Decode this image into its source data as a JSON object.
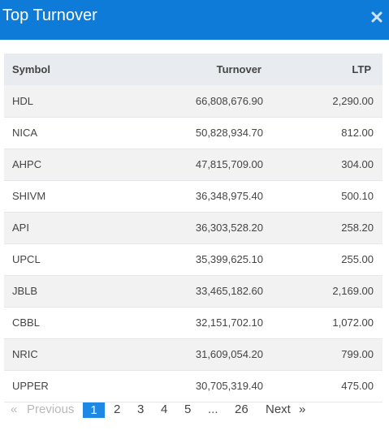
{
  "modal": {
    "title": "Top Turnover"
  },
  "table": {
    "headers": {
      "symbol": "Symbol",
      "turnover": "Turnover",
      "ltp": "LTP"
    },
    "rows": [
      {
        "symbol": "HDL",
        "turnover": "66,808,676.90",
        "ltp": "2,290.00"
      },
      {
        "symbol": "NICA",
        "turnover": "50,828,934.70",
        "ltp": "812.00"
      },
      {
        "symbol": "AHPC",
        "turnover": "47,815,709.00",
        "ltp": "304.00"
      },
      {
        "symbol": "SHIVM",
        "turnover": "36,348,975.40",
        "ltp": "500.10"
      },
      {
        "symbol": "API",
        "turnover": "36,303,528.20",
        "ltp": "258.20"
      },
      {
        "symbol": "UPCL",
        "turnover": "35,399,625.10",
        "ltp": "255.00"
      },
      {
        "symbol": "JBLB",
        "turnover": "33,465,182.60",
        "ltp": "2,169.00"
      },
      {
        "symbol": "CBBL",
        "turnover": "32,151,702.10",
        "ltp": "1,072.00"
      },
      {
        "symbol": "NRIC",
        "turnover": "31,609,054.20",
        "ltp": "799.00"
      },
      {
        "symbol": "UPPER",
        "turnover": "30,705,319.40",
        "ltp": "475.00"
      }
    ]
  },
  "pagination": {
    "first_arrow": "«",
    "previous": "Previous",
    "pages": [
      "1",
      "2",
      "3",
      "4",
      "5"
    ],
    "ellipsis": "...",
    "last_page": "26",
    "next": "Next",
    "last_arrow": "»",
    "current": "1"
  },
  "colors": {
    "header_bg": "#0f7bd9",
    "active_page": "#1e88e5"
  },
  "icons": {
    "close": "close-icon"
  }
}
